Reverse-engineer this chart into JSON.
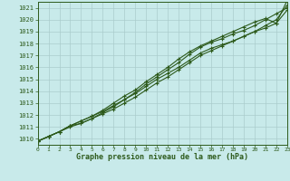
{
  "title": "Graphe pression niveau de la mer (hPa)",
  "bg_color": "#c8eaea",
  "grid_color": "#aacccc",
  "line_color": "#2d5a1b",
  "xmin": 0,
  "xmax": 23,
  "ymin": 1009.5,
  "ymax": 1021.5,
  "yticks": [
    1010,
    1011,
    1012,
    1013,
    1014,
    1015,
    1016,
    1017,
    1018,
    1019,
    1020,
    1021
  ],
  "xticks": [
    0,
    1,
    2,
    3,
    4,
    5,
    6,
    7,
    8,
    9,
    10,
    11,
    12,
    13,
    14,
    15,
    16,
    17,
    18,
    19,
    20,
    21,
    22,
    23
  ],
  "series": [
    [
      1009.8,
      1010.2,
      1010.6,
      1011.1,
      1011.5,
      1011.9,
      1012.3,
      1012.8,
      1013.3,
      1013.8,
      1014.4,
      1015.0,
      1015.5,
      1016.0,
      1016.6,
      1017.2,
      1017.6,
      1017.9,
      1018.2,
      1018.6,
      1019.0,
      1019.3,
      1019.7,
      1021.6
    ],
    [
      1009.8,
      1010.2,
      1010.6,
      1011.0,
      1011.3,
      1011.7,
      1012.1,
      1012.5,
      1013.0,
      1013.5,
      1014.1,
      1014.7,
      1015.2,
      1015.8,
      1016.4,
      1017.0,
      1017.4,
      1017.8,
      1018.2,
      1018.6,
      1019.0,
      1019.5,
      1020.0,
      1021.2
    ],
    [
      1009.8,
      1010.2,
      1010.6,
      1011.1,
      1011.3,
      1011.7,
      1012.2,
      1012.7,
      1013.3,
      1013.9,
      1014.6,
      1015.2,
      1015.8,
      1016.4,
      1017.1,
      1017.7,
      1018.1,
      1018.4,
      1018.8,
      1019.1,
      1019.5,
      1020.0,
      1020.5,
      1021.0
    ],
    [
      1009.8,
      1010.2,
      1010.6,
      1011.1,
      1011.5,
      1011.9,
      1012.4,
      1013.0,
      1013.6,
      1014.1,
      1014.8,
      1015.4,
      1016.0,
      1016.7,
      1017.3,
      1017.8,
      1018.2,
      1018.6,
      1019.0,
      1019.4,
      1019.8,
      1020.1,
      1019.7,
      1020.8
    ]
  ]
}
